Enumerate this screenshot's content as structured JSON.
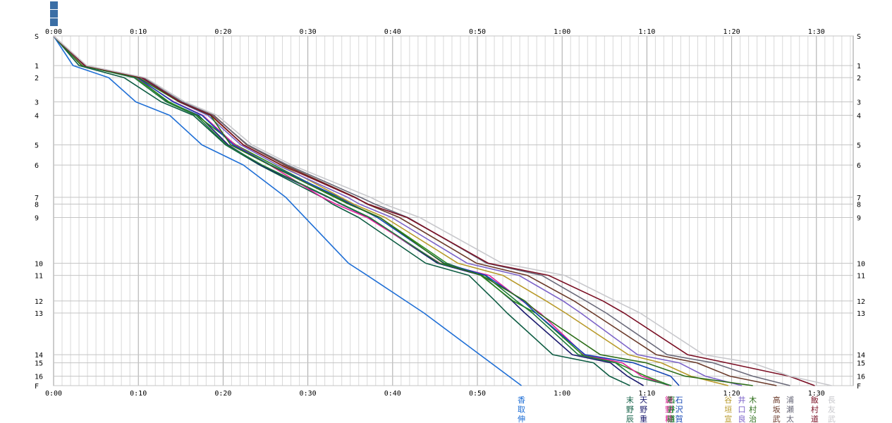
{
  "chart_data": {
    "type": "line",
    "x_tick_labels": [
      "0:00",
      "0:10",
      "0:20",
      "0:30",
      "0:40",
      "0:50",
      "1:00",
      "1:10",
      "1:20",
      "1:30"
    ],
    "x_unit": "minutes",
    "xlim": [
      0,
      94
    ],
    "checkpoints": [
      "S",
      "1",
      "2",
      "3",
      "4",
      "5",
      "6",
      "7",
      "8",
      "9",
      "10",
      "11",
      "12",
      "13",
      "14",
      "15",
      "16",
      "F"
    ],
    "checkpoint_levels": [
      0,
      2.2,
      3.1,
      4.9,
      5.9,
      8.1,
      9.6,
      12.0,
      12.5,
      13.5,
      16.9,
      17.8,
      19.7,
      20.6,
      23.7,
      24.3,
      25.3,
      26.0
    ],
    "series": [
      {
        "name": "香取伸",
        "label_chars": [
          "香",
          "取",
          "伸"
        ],
        "color": "#1f6fd6",
        "x": [
          0,
          2.3,
          6.5,
          9.7,
          13.7,
          17.5,
          22.4,
          27.4,
          34.8,
          37.0,
          43.7,
          50.3,
          55.2
        ],
        "y": [
          0,
          2.2,
          3.1,
          4.9,
          5.9,
          8.1,
          9.6,
          12.0,
          16.9,
          17.8,
          20.6,
          23.7,
          26.0
        ]
      },
      {
        "name": "末野辰",
        "label_chars": [
          "末",
          "野",
          "辰"
        ],
        "color": "#0d5c42",
        "x": [
          0,
          3.0,
          8.3,
          12.7,
          16.5,
          20.3,
          24.3,
          31.7,
          32.9,
          36.0,
          43.9,
          49.0,
          52.1,
          53.5,
          58.9,
          63.7,
          65.6,
          68.0
        ],
        "y": [
          0,
          2.2,
          3.1,
          4.9,
          5.9,
          8.1,
          9.6,
          12.0,
          12.5,
          13.5,
          16.9,
          17.8,
          19.7,
          20.6,
          23.7,
          24.3,
          25.3,
          26.0
        ]
      },
      {
        "name": "天野重",
        "label_chars": [
          "天",
          "野",
          "重"
        ],
        "color": "#1a1a6e",
        "x": [
          0,
          3.4,
          9.8,
          13.5,
          17.1,
          20.6,
          24.4,
          32.4,
          33.9,
          37.2,
          45.3,
          50.5,
          54.1,
          55.6,
          61.2,
          65.7,
          67.7,
          69.6
        ],
        "y": [
          0,
          2.2,
          3.1,
          4.9,
          5.9,
          8.1,
          9.6,
          12.0,
          12.5,
          13.5,
          16.9,
          17.8,
          19.7,
          20.6,
          23.7,
          24.3,
          25.3,
          26.0
        ]
      },
      {
        "name": "熊野精",
        "label_chars": [
          "熊",
          "野",
          "精"
        ],
        "color": "#2a8a1c",
        "x": [
          0,
          3.3,
          9.7,
          13.6,
          16.9,
          21.5,
          26.0,
          33.4,
          35.0,
          38.5,
          46.4,
          50.4,
          54.2,
          56.9,
          62.4,
          66.4,
          69.9,
          72.8
        ],
        "y": [
          0,
          2.2,
          3.1,
          4.9,
          5.9,
          8.1,
          9.6,
          12.0,
          12.5,
          13.5,
          16.9,
          17.8,
          19.7,
          20.6,
          23.7,
          24.3,
          25.3,
          26.0
        ]
      },
      {
        "name": "鍵野精",
        "label_chars": [
          "鍵",
          "野",
          "精"
        ],
        "color": "#e0229a",
        "x": [
          0,
          3.4,
          9.8,
          14.2,
          17.6,
          21.4,
          25.5,
          31.7,
          33.3,
          37.0,
          45.6,
          51.4,
          55.3,
          57.4,
          62.6,
          67.1,
          69.4,
          72.6
        ],
        "y": [
          0,
          2.2,
          3.1,
          4.9,
          5.9,
          8.1,
          9.6,
          12.0,
          12.5,
          13.5,
          16.9,
          17.8,
          19.7,
          20.6,
          23.7,
          24.3,
          25.3,
          26.0
        ]
      },
      {
        "name": "石井道",
        "label_chars": [
          "石",
          "井",
          "道"
        ],
        "color": "#1f7a3a",
        "x": [
          0,
          3.3,
          9.5,
          13.3,
          16.8,
          20.4,
          24.6,
          32.5,
          34.0,
          37.3,
          45.5,
          50.9,
          54.6,
          56.5,
          61.9,
          66.3,
          68.4,
          72.9
        ],
        "y": [
          0,
          2.2,
          3.1,
          4.9,
          5.9,
          8.1,
          9.6,
          12.0,
          12.5,
          13.5,
          16.9,
          17.8,
          19.7,
          20.6,
          23.7,
          24.3,
          25.3,
          26.0
        ]
      },
      {
        "name": "石沢賀",
        "label_chars": [
          "石",
          "沢",
          "賀"
        ],
        "color": "#1446b4",
        "x": [
          0,
          3.4,
          9.9,
          14.1,
          17.5,
          21.2,
          25.6,
          33.7,
          35.1,
          38.2,
          46.1,
          51.0,
          55.4,
          56.9,
          62.7,
          68.4,
          72.8,
          73.8
        ],
        "y": [
          0,
          2.2,
          3.1,
          4.9,
          5.9,
          8.1,
          9.6,
          12.0,
          12.5,
          13.5,
          16.9,
          17.8,
          19.7,
          20.6,
          23.7,
          24.3,
          25.3,
          26.0
        ]
      },
      {
        "name": "谷垣宣",
        "label_chars": [
          "谷",
          "垣",
          "宣"
        ],
        "color": "#b89a2a",
        "x": [
          0,
          3.5,
          10.2,
          14.9,
          18.5,
          22.4,
          26.8,
          33.9,
          35.4,
          39.1,
          47.7,
          53.0,
          58.1,
          60.4,
          67.8,
          71.7,
          75.2,
          79.6
        ],
        "y": [
          0,
          2.2,
          3.1,
          4.9,
          5.9,
          8.1,
          9.6,
          12.0,
          12.5,
          13.5,
          16.9,
          17.8,
          19.7,
          20.6,
          23.7,
          24.3,
          25.3,
          26.0
        ]
      },
      {
        "name": "井口良",
        "label_chars": [
          "井",
          "口",
          "良"
        ],
        "color": "#7b62c8",
        "x": [
          0,
          3.6,
          10.3,
          14.8,
          18.2,
          22.1,
          26.4,
          34.7,
          36.1,
          39.9,
          48.8,
          54.9,
          60.1,
          62.2,
          68.9,
          73.8,
          76.9,
          81.2
        ],
        "y": [
          0,
          2.2,
          3.1,
          4.9,
          5.9,
          8.1,
          9.6,
          12.0,
          12.5,
          13.5,
          16.9,
          17.8,
          19.7,
          20.6,
          23.7,
          24.3,
          25.3,
          26.0
        ]
      },
      {
        "name": "木村治",
        "label_chars": [
          "木",
          "村",
          "治"
        ],
        "color": "#2d6e1a",
        "x": [
          0,
          3.3,
          10.0,
          14.8,
          18.5,
          20.9,
          25.5,
          33.2,
          34.8,
          38.5,
          46.0,
          50.5,
          55.6,
          57.2,
          64.5,
          69.9,
          74.5,
          82.5
        ],
        "y": [
          0,
          2.2,
          3.1,
          4.9,
          5.9,
          8.1,
          9.6,
          12.0,
          12.5,
          13.5,
          16.9,
          17.8,
          19.7,
          20.6,
          23.7,
          24.3,
          25.3,
          26.0
        ]
      },
      {
        "name": "高坂武",
        "label_chars": [
          "高",
          "坂",
          "武"
        ],
        "color": "#6b3a2a",
        "x": [
          0,
          3.8,
          10.6,
          15.1,
          18.9,
          22.8,
          27.3,
          35.6,
          37.0,
          40.8,
          49.9,
          55.9,
          61.4,
          63.6,
          71.1,
          75.9,
          79.8,
          85.3
        ],
        "y": [
          0,
          2.2,
          3.1,
          4.9,
          5.9,
          8.1,
          9.6,
          12.0,
          12.5,
          13.5,
          16.9,
          17.8,
          19.7,
          20.6,
          23.7,
          24.3,
          25.3,
          26.0
        ]
      },
      {
        "name": "浦瀬太",
        "label_chars": [
          "浦",
          "瀬",
          "太"
        ],
        "color": "#6a6a7a",
        "x": [
          0,
          3.6,
          10.5,
          15.2,
          18.8,
          22.9,
          27.6,
          36.2,
          37.9,
          41.8,
          51.1,
          57.6,
          62.8,
          65.2,
          72.4,
          77.8,
          82.5,
          86.9
        ],
        "y": [
          0,
          2.2,
          3.1,
          4.9,
          5.9,
          8.1,
          9.6,
          12.0,
          12.5,
          13.5,
          16.9,
          17.8,
          19.7,
          20.6,
          23.7,
          24.3,
          25.3,
          26.0
        ]
      },
      {
        "name": "飯村道",
        "label_chars": [
          "飯",
          "村",
          "道"
        ],
        "color": "#7a0f24",
        "x": [
          0,
          3.7,
          10.4,
          14.9,
          18.6,
          22.4,
          26.9,
          35.5,
          37.1,
          41.7,
          51.3,
          58.4,
          64.8,
          67.3,
          74.8,
          79.4,
          86.8,
          89.8
        ],
        "y": [
          0,
          2.2,
          3.1,
          4.9,
          5.9,
          8.1,
          9.6,
          12.0,
          12.5,
          13.5,
          16.9,
          17.8,
          19.7,
          20.6,
          23.7,
          24.3,
          25.3,
          26.0
        ]
      },
      {
        "name": "長友武",
        "label_chars": [
          "長",
          "友",
          "武"
        ],
        "color": "#c8c8cc",
        "x": [
          0,
          3.9,
          10.8,
          15.5,
          19.3,
          23.4,
          28.1,
          37.4,
          39.0,
          43.2,
          52.9,
          60.3,
          66.3,
          69.2,
          76.7,
          82.4,
          86.9,
          91.8
        ],
        "y": [
          0,
          2.2,
          3.1,
          4.9,
          5.9,
          8.1,
          9.6,
          12.0,
          12.5,
          13.5,
          16.9,
          17.8,
          19.7,
          20.6,
          23.7,
          24.3,
          25.3,
          26.0
        ]
      }
    ],
    "grid": true,
    "legend_position": "top-left"
  }
}
